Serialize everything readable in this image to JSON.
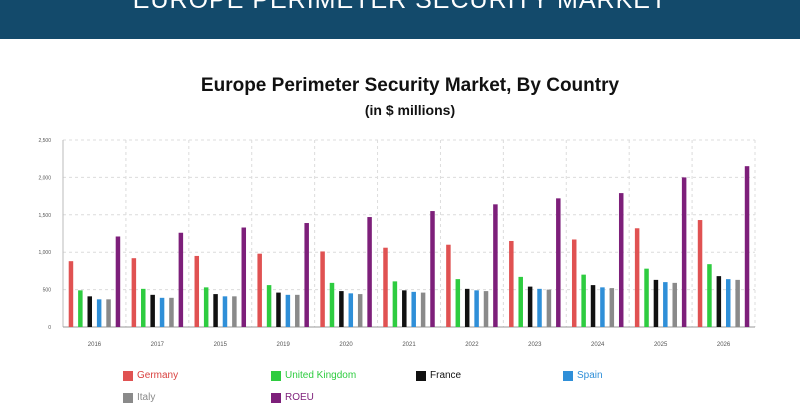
{
  "banner": {
    "title": "EUROPE PERIMETER SECURITY MARKET"
  },
  "chart_data": {
    "type": "bar",
    "title": "Europe Perimeter Security Market, By Country",
    "subtitle": "(in $ millions)",
    "xlabel": "",
    "ylabel": "",
    "categories": [
      "2016",
      "2017",
      "2015",
      "2019",
      "2020",
      "2021",
      "2022",
      "2023",
      "2024",
      "2025",
      "2026"
    ],
    "ylim": [
      0,
      2500
    ],
    "yticks": [
      0,
      500,
      1000,
      1500,
      2000,
      2500
    ],
    "ytick_labels": [
      "0",
      "500",
      "1,000",
      "1,500",
      "2,000",
      "2,500"
    ],
    "grid": true,
    "legend_position": "bottom",
    "series": [
      {
        "name": "Germany",
        "color": "#e05252",
        "label_color": "#d9413f",
        "values": [
          880,
          920,
          950,
          980,
          1010,
          1060,
          1100,
          1150,
          1170,
          1320,
          1430
        ]
      },
      {
        "name": "United Kingdom",
        "color": "#2ecc40",
        "label_color": "#2ecc40",
        "values": [
          490,
          510,
          530,
          560,
          590,
          610,
          640,
          670,
          700,
          780,
          840
        ]
      },
      {
        "name": "France",
        "color": "#111111",
        "label_color": "#111111",
        "values": [
          410,
          430,
          440,
          460,
          480,
          490,
          510,
          540,
          560,
          630,
          680
        ]
      },
      {
        "name": "Spain",
        "color": "#2f8fd8",
        "label_color": "#2f8fd8",
        "values": [
          370,
          390,
          410,
          430,
          450,
          470,
          490,
          510,
          530,
          600,
          640
        ]
      },
      {
        "name": "Italy",
        "color": "#8a8a8a",
        "label_color": "#8a8a8a",
        "values": [
          370,
          390,
          410,
          430,
          440,
          460,
          480,
          500,
          520,
          590,
          630
        ]
      },
      {
        "name": "ROEU",
        "color": "#7d1f7a",
        "label_color": "#7d1f7a",
        "values": [
          1210,
          1260,
          1330,
          1390,
          1470,
          1550,
          1640,
          1720,
          1790,
          2000,
          2150
        ]
      }
    ]
  }
}
